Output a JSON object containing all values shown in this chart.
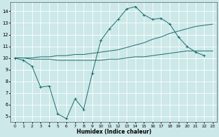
{
  "xlabel": "Humidex (Indice chaleur)",
  "background_color": "#cce8e8",
  "line_color": "#1a6b6b",
  "grid_color": "#ffffff",
  "xlim": [
    -0.5,
    23.5
  ],
  "ylim": [
    4.5,
    14.8
  ],
  "xticks": [
    0,
    1,
    2,
    3,
    4,
    5,
    6,
    7,
    8,
    9,
    10,
    11,
    12,
    13,
    14,
    15,
    16,
    17,
    18,
    19,
    20,
    21,
    22,
    23
  ],
  "yticks": [
    5,
    6,
    7,
    8,
    9,
    10,
    11,
    12,
    13,
    14
  ],
  "series1_x": [
    0,
    1,
    2,
    3,
    4,
    5,
    6,
    7,
    8,
    9,
    10,
    11,
    12,
    13,
    14,
    15,
    16,
    17,
    18,
    19,
    20,
    21,
    22
  ],
  "series1_y": [
    10.0,
    9.8,
    9.3,
    7.5,
    7.6,
    5.2,
    4.8,
    6.5,
    5.6,
    8.7,
    11.5,
    12.5,
    13.3,
    14.2,
    14.4,
    13.7,
    13.3,
    13.4,
    12.9,
    11.8,
    11.0,
    10.5,
    10.2
  ],
  "series2_x": [
    0,
    1,
    2,
    3,
    4,
    5,
    6,
    7,
    8,
    9,
    10,
    11,
    12,
    13,
    14,
    15,
    16,
    17,
    18,
    19,
    20,
    21,
    22,
    23
  ],
  "series2_y": [
    10.0,
    10.0,
    10.0,
    10.1,
    10.1,
    10.2,
    10.2,
    10.3,
    10.3,
    10.4,
    10.5,
    10.6,
    10.7,
    10.9,
    11.1,
    11.3,
    11.6,
    11.8,
    12.1,
    12.3,
    12.5,
    12.7,
    12.8,
    12.9
  ],
  "series3_x": [
    0,
    1,
    2,
    3,
    4,
    5,
    6,
    7,
    8,
    9,
    10,
    11,
    12,
    13,
    14,
    15,
    16,
    17,
    18,
    19,
    20,
    21,
    22,
    23
  ],
  "series3_y": [
    10.0,
    10.0,
    9.9,
    9.9,
    9.9,
    9.8,
    9.8,
    9.8,
    9.8,
    9.8,
    9.8,
    9.9,
    9.9,
    10.0,
    10.1,
    10.1,
    10.2,
    10.3,
    10.4,
    10.5,
    10.6,
    10.6,
    10.6,
    10.6
  ]
}
